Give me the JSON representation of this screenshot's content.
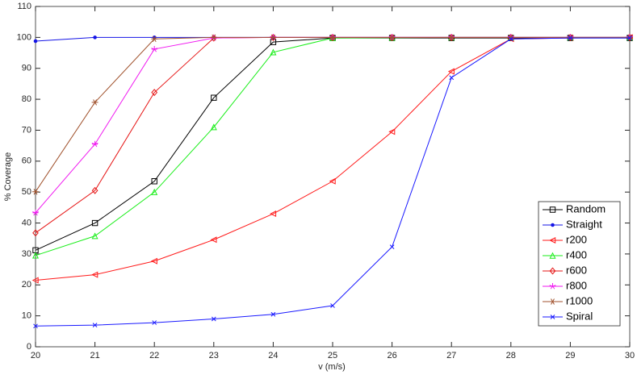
{
  "chart_data": {
    "type": "line",
    "xlabel": "v (m/s)",
    "ylabel": "% Coverage",
    "x": [
      20,
      21,
      22,
      23,
      24,
      25,
      26,
      27,
      28,
      29,
      30
    ],
    "xlim": [
      20,
      30
    ],
    "xticks": [
      20,
      21,
      22,
      23,
      24,
      25,
      26,
      27,
      28,
      29,
      30
    ],
    "ylim": [
      0,
      110
    ],
    "yticks": [
      0,
      10,
      20,
      30,
      40,
      50,
      60,
      70,
      80,
      90,
      100,
      110
    ],
    "legend": "lower right",
    "series": [
      {
        "name": "Random",
        "color": "#000000",
        "marker": "square",
        "values": [
          31.2,
          40,
          53.5,
          80.5,
          98.5,
          99.8,
          99.8,
          99.8,
          99.8,
          99.8,
          99.8
        ]
      },
      {
        "name": "Straight",
        "color": "#1515e6",
        "marker": "dot",
        "values": [
          98.8,
          100,
          100,
          100,
          100,
          100,
          100,
          100,
          100,
          100,
          100
        ]
      },
      {
        "name": "r200",
        "color": "#ff1a1a",
        "marker": "triangle-left",
        "values": [
          21.5,
          23.3,
          27.7,
          34.6,
          43,
          53.5,
          69.5,
          89,
          99.5,
          99.8,
          100
        ]
      },
      {
        "name": "r400",
        "color": "#1aee1a",
        "marker": "triangle-up",
        "values": [
          29.5,
          35.8,
          50,
          71,
          95.2,
          99.8,
          99.9,
          100,
          100,
          100,
          100
        ]
      },
      {
        "name": "r600",
        "color": "#e61414",
        "marker": "diamond",
        "values": [
          36.8,
          50.5,
          82.2,
          99.8,
          100,
          100,
          100,
          100,
          100,
          100,
          100
        ]
      },
      {
        "name": "r800",
        "color": "#f01af0",
        "marker": "star",
        "values": [
          43.3,
          65.5,
          96.2,
          99.8,
          100,
          100,
          100,
          100,
          100,
          100,
          100
        ]
      },
      {
        "name": "r1000",
        "color": "#a0522d",
        "marker": "hexagram",
        "values": [
          50.1,
          79,
          99.5,
          100,
          100,
          100,
          100,
          100,
          100,
          100,
          100
        ]
      },
      {
        "name": "Spiral",
        "color": "#1a1aff",
        "marker": "x",
        "values": [
          6.7,
          7,
          7.8,
          9,
          10.5,
          13.3,
          32.3,
          87,
          99.5,
          99.8,
          99.8
        ]
      }
    ]
  }
}
